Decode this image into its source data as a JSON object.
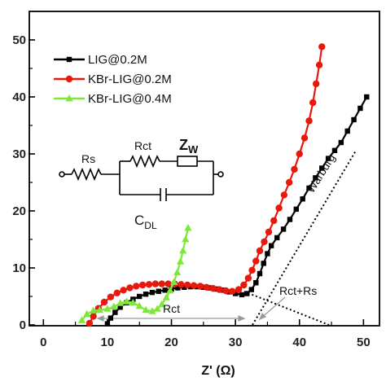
{
  "chart_data": {
    "type": "scatter",
    "xlabel": "Z' (Ω)",
    "xlim": [
      0,
      50
    ],
    "ylim": [
      0,
      50
    ],
    "x_ticks": [
      "0",
      "10",
      "20",
      "30",
      "40",
      "50"
    ],
    "y_ticks": [
      "0",
      "10",
      "20",
      "30",
      "40",
      "50"
    ],
    "grid": false,
    "legend_position": "top-left",
    "series": [
      {
        "name": "LIG@0.2M",
        "color": "#000000",
        "marker": "square",
        "points": [
          [
            10.0,
            0.2
          ],
          [
            10.5,
            1.2
          ],
          [
            11.2,
            2.2
          ],
          [
            12.0,
            3.1
          ],
          [
            13.0,
            3.9
          ],
          [
            14.0,
            4.5
          ],
          [
            15.0,
            5.0
          ],
          [
            16.0,
            5.4
          ],
          [
            17.0,
            5.7
          ],
          [
            18.0,
            5.9
          ],
          [
            19.0,
            6.1
          ],
          [
            20.0,
            6.3
          ],
          [
            21.0,
            6.5
          ],
          [
            22.0,
            6.6
          ],
          [
            23.0,
            6.7
          ],
          [
            24.0,
            6.7
          ],
          [
            25.0,
            6.6
          ],
          [
            26.0,
            6.5
          ],
          [
            27.0,
            6.3
          ],
          [
            28.0,
            6.1
          ],
          [
            29.0,
            5.8
          ],
          [
            30.0,
            5.5
          ],
          [
            31.0,
            5.3
          ],
          [
            31.8,
            5.5
          ],
          [
            32.5,
            6.2
          ],
          [
            33.2,
            7.4
          ],
          [
            33.8,
            9.0
          ],
          [
            34.4,
            10.8
          ],
          [
            35.0,
            12.5
          ],
          [
            35.6,
            13.9
          ],
          [
            36.5,
            15.3
          ],
          [
            37.5,
            16.8
          ],
          [
            38.5,
            18.5
          ],
          [
            39.5,
            20.3
          ],
          [
            40.5,
            22.1
          ],
          [
            41.5,
            24.0
          ],
          [
            42.5,
            25.8
          ],
          [
            43.5,
            27.5
          ],
          [
            44.5,
            29.2
          ],
          [
            45.5,
            30.6
          ],
          [
            46.5,
            32.0
          ],
          [
            47.5,
            34.0
          ],
          [
            48.5,
            36.0
          ],
          [
            49.5,
            38.0
          ],
          [
            50.5,
            40.0
          ]
        ]
      },
      {
        "name": "KBr-LIG@0.2M",
        "color": "#e8180c",
        "marker": "circle",
        "points": [
          [
            7.2,
            0.3
          ],
          [
            7.8,
            1.5
          ],
          [
            8.6,
            2.9
          ],
          [
            9.5,
            4.0
          ],
          [
            10.5,
            4.9
          ],
          [
            11.5,
            5.6
          ],
          [
            12.5,
            6.1
          ],
          [
            13.5,
            6.5
          ],
          [
            14.5,
            6.8
          ],
          [
            15.5,
            7.0
          ],
          [
            16.5,
            7.1
          ],
          [
            17.5,
            7.2
          ],
          [
            18.5,
            7.2
          ],
          [
            19.5,
            7.2
          ],
          [
            20.5,
            7.2
          ],
          [
            21.5,
            7.1
          ],
          [
            22.5,
            7.0
          ],
          [
            23.5,
            6.9
          ],
          [
            24.5,
            6.8
          ],
          [
            25.5,
            6.6
          ],
          [
            26.5,
            6.4
          ],
          [
            27.5,
            6.2
          ],
          [
            28.5,
            6.0
          ],
          [
            29.5,
            5.9
          ],
          [
            30.5,
            6.2
          ],
          [
            31.3,
            7.0
          ],
          [
            32.0,
            8.2
          ],
          [
            32.6,
            9.6
          ],
          [
            33.2,
            11.2
          ],
          [
            33.8,
            13.0
          ],
          [
            34.5,
            14.6
          ],
          [
            35.2,
            16.3
          ],
          [
            36.0,
            18.3
          ],
          [
            36.8,
            20.5
          ],
          [
            37.6,
            22.8
          ],
          [
            38.4,
            25.0
          ],
          [
            39.2,
            27.3
          ],
          [
            40.0,
            30.0
          ],
          [
            40.8,
            32.8
          ],
          [
            41.5,
            35.8
          ],
          [
            42.1,
            39.0
          ],
          [
            42.6,
            42.3
          ],
          [
            43.1,
            45.6
          ],
          [
            43.5,
            48.8
          ]
        ]
      },
      {
        "name": "KBr-LIG@0.4M",
        "color": "#7ee83a",
        "marker": "triangle",
        "points": [
          [
            6.0,
            0.8
          ],
          [
            6.8,
            1.9
          ],
          [
            7.8,
            2.5
          ],
          [
            8.8,
            2.6
          ],
          [
            10.0,
            2.8
          ],
          [
            11.0,
            3.2
          ],
          [
            12.0,
            3.8
          ],
          [
            13.0,
            4.1
          ],
          [
            14.0,
            3.9
          ],
          [
            15.0,
            3.3
          ],
          [
            16.0,
            2.6
          ],
          [
            17.0,
            2.4
          ],
          [
            17.8,
            2.8
          ],
          [
            18.5,
            3.6
          ],
          [
            19.2,
            4.8
          ],
          [
            19.8,
            6.0
          ],
          [
            20.4,
            7.5
          ],
          [
            20.9,
            9.2
          ],
          [
            21.4,
            11.1
          ],
          [
            21.8,
            13.0
          ],
          [
            22.2,
            15.0
          ],
          [
            22.6,
            17.0
          ]
        ]
      }
    ],
    "annotations": [
      "Warburg",
      "Rct+Rs",
      "Rct"
    ],
    "circuit_labels": {
      "rs": "Rs",
      "rct": "Rct",
      "zw": "Z",
      "zw_sub": "W",
      "cdl": "C",
      "cdl_sub": "DL"
    }
  }
}
